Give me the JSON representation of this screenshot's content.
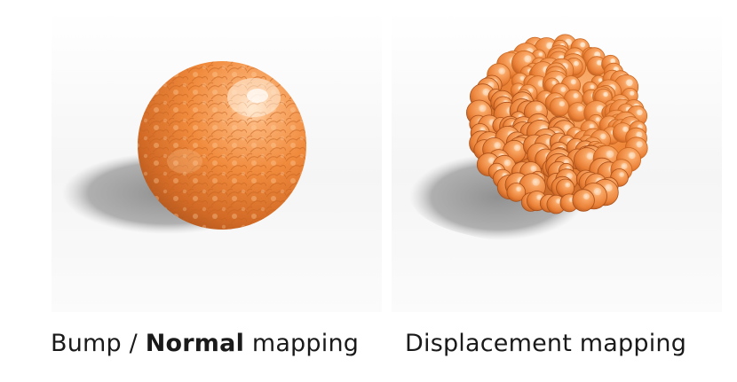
{
  "captions": {
    "left": {
      "prefix": "Bump / ",
      "bold": "Normal",
      "suffix": " mapping"
    },
    "right": {
      "text": "Displacement mapping"
    }
  },
  "colors": {
    "sphere_base": "#f08a3c",
    "sphere_highlight": "#ffd9b0",
    "sphere_shadow_side": "#b0501a",
    "floor_shadow": "#9a9a9a",
    "background_panel": "#f4f4f4"
  }
}
